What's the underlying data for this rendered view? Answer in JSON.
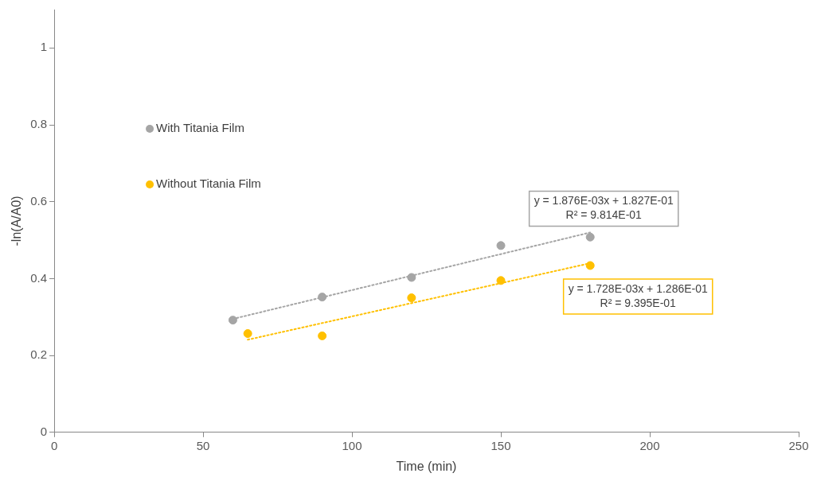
{
  "chart_data": {
    "type": "scatter",
    "xlabel": "Time (min)",
    "ylabel": "-ln(A/A0)",
    "xlim": [
      0,
      250
    ],
    "xticks": [
      0,
      50,
      100,
      150,
      200,
      250
    ],
    "ylim": [
      0,
      1.1
    ],
    "yticks": [
      0,
      0.2,
      0.4,
      0.6,
      0.8,
      1
    ],
    "grid": false,
    "legend": "left",
    "marker": "circle",
    "series": [
      {
        "name": "With Titania Film",
        "color": "#a5a5a5",
        "x": [
          60,
          90,
          120,
          150,
          180
        ],
        "values": [
          0.292,
          0.352,
          0.403,
          0.486,
          0.508
        ]
      },
      {
        "name": "Without Titania Film",
        "color": "#ffc000",
        "x": [
          65,
          90,
          120,
          150,
          180
        ],
        "values": [
          0.257,
          0.251,
          0.35,
          0.395,
          0.434
        ]
      },
      {
        "type": "line",
        "color": "#a5a5a5",
        "marker": "none",
        "line_style": "dotted",
        "x": [
          60,
          180
        ],
        "values": [
          0.295,
          0.52
        ]
      },
      {
        "type": "line",
        "color": "#ffc000",
        "marker": "none",
        "line_style": "dotted",
        "x": [
          65,
          180
        ],
        "values": [
          0.241,
          0.44
        ]
      }
    ],
    "annotations": [
      "y = 1.876E-03x + 1.827E-01\nR² = 9.814E-01",
      "y = 1.728E-03x + 1.286E-01\nR² = 9.395E-01"
    ]
  }
}
